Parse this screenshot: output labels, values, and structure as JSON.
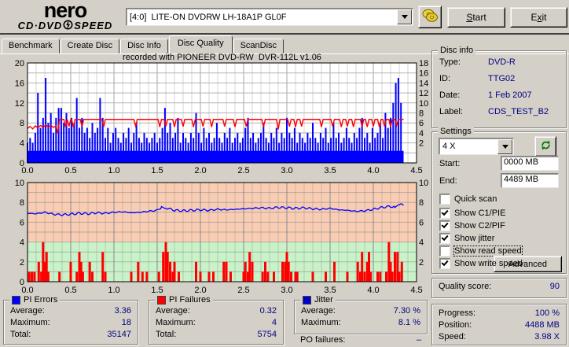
{
  "header": {
    "logo_line1": "nero",
    "logo_line2": "CD·DVD",
    "logo_line3": "SPEED",
    "drive_select": "[4:0]  LITE-ON DVDRW LH-18A1P GL0F",
    "start_button": {
      "text": "Start",
      "u": 0
    },
    "exit_button": {
      "text": "Exit",
      "u": 1
    }
  },
  "tabs": [
    {
      "label": "Benchmark"
    },
    {
      "label": "Create Disc"
    },
    {
      "label": "Disc Info"
    },
    {
      "label": "Disc Quality"
    },
    {
      "label": "ScanDisc"
    }
  ],
  "chart_data": [
    {
      "type": "area",
      "title": "recorded with PIONEER DVD-RW  DVR-112L v1.06",
      "xlim": [
        0,
        4.5
      ],
      "x_ticks": [
        "0.0",
        "0.5",
        "1.0",
        "1.5",
        "2.0",
        "2.5",
        "3.0",
        "3.5",
        "4.0",
        "4.5"
      ],
      "left_ticks": [
        0,
        4,
        8,
        12,
        16,
        20
      ],
      "left_lim": [
        0,
        20
      ],
      "right_ticks": [
        2,
        4,
        6,
        8,
        10,
        12,
        14,
        16,
        18
      ],
      "grid": true,
      "pi_errors": {
        "name": "PI Errors",
        "color": "#0000ff",
        "step": 0.03,
        "values": [
          4,
          5,
          4,
          6,
          14,
          7,
          9,
          17,
          8,
          10,
          6,
          9,
          11,
          11,
          8,
          10,
          7,
          9,
          8,
          13,
          7,
          9,
          6,
          7,
          5,
          8,
          6,
          7,
          13,
          9,
          5,
          7,
          4,
          6,
          7,
          5,
          4,
          6,
          5,
          7,
          4,
          6,
          8,
          5,
          4,
          6,
          5,
          4,
          5,
          6,
          4,
          5,
          7,
          11,
          6,
          8,
          5,
          6,
          9,
          4,
          6,
          5,
          4,
          6,
          5,
          10,
          6,
          4,
          7,
          5,
          6,
          4,
          5,
          8,
          5,
          4,
          6,
          5,
          7,
          4,
          5,
          6,
          4,
          5,
          7,
          9,
          5,
          6,
          4,
          5,
          6,
          8,
          5,
          4,
          6,
          5,
          7,
          4,
          6,
          5,
          9,
          6,
          5,
          7,
          4,
          6,
          5,
          4,
          6,
          5,
          8,
          5,
          4,
          6,
          5,
          7,
          4,
          5,
          8,
          5,
          6,
          4,
          5,
          7,
          5,
          4,
          6,
          5,
          7,
          9,
          5,
          6,
          4,
          7,
          5,
          6,
          8,
          5,
          10,
          7,
          9,
          12,
          16,
          17,
          12
        ]
      },
      "write_speed": {
        "name": "Write speed",
        "color": "#ff0000",
        "level": 6.7,
        "intro": [
          [
            0,
            4.9
          ],
          [
            0.03,
            5.3
          ],
          [
            0.06,
            4.8
          ],
          [
            0.09,
            5.4
          ],
          [
            0.12,
            5.0
          ],
          [
            0.15,
            5.5
          ],
          [
            0.18,
            5.1
          ],
          [
            0.21,
            5.6
          ],
          [
            0.24,
            5.2
          ],
          [
            0.27,
            5.5
          ],
          [
            0.3,
            5.1
          ],
          [
            0.33,
            5.4
          ],
          [
            0.35,
            3.9
          ]
        ],
        "flat_from": 0.37,
        "flat_to": 4.35,
        "dips": [
          [
            0.44,
            5.2
          ],
          [
            0.48,
            5.3
          ],
          [
            0.53,
            5.2
          ],
          [
            0.63,
            5.3
          ],
          [
            0.88,
            5.2
          ],
          [
            1.25,
            5.4
          ],
          [
            1.53,
            5.2
          ],
          [
            1.6,
            5.3
          ],
          [
            1.7,
            5.2
          ],
          [
            1.8,
            5.3
          ],
          [
            1.92,
            5.2
          ],
          [
            2.03,
            5.3
          ],
          [
            2.13,
            5.2
          ],
          [
            2.28,
            5.3
          ],
          [
            2.4,
            5.2
          ],
          [
            2.53,
            5.3
          ],
          [
            2.73,
            5.2
          ],
          [
            2.9,
            4.7
          ],
          [
            3.03,
            5.3
          ],
          [
            3.1,
            5.2
          ],
          [
            3.17,
            5.3
          ],
          [
            3.4,
            5.2
          ],
          [
            3.53,
            5.3
          ],
          [
            3.63,
            5.2
          ],
          [
            3.7,
            5.3
          ],
          [
            3.77,
            5.2
          ],
          [
            3.87,
            5.3
          ],
          [
            3.93,
            5.2
          ],
          [
            4.0,
            5.3
          ],
          [
            4.07,
            5.2
          ],
          [
            4.13,
            5.3
          ],
          [
            4.2,
            5.2
          ],
          [
            4.27,
            5.5
          ]
        ]
      }
    },
    {
      "type": "bar+line",
      "xlim": [
        0,
        4.5
      ],
      "x_ticks": [
        "0.0",
        "0.5",
        "1.0",
        "1.5",
        "2.0",
        "2.5",
        "3.0",
        "3.5",
        "4.0",
        "4.5"
      ],
      "left_ticks": [
        0,
        2,
        4,
        6,
        8,
        10
      ],
      "left_lim": [
        0,
        10
      ],
      "right_ticks": [
        2,
        4,
        6,
        8,
        10
      ],
      "zones": {
        "low": {
          "from": 0,
          "to": 4,
          "color": "#c9f2c9"
        },
        "high": {
          "from": 4,
          "to": 10,
          "color": "#f8cdb4"
        }
      },
      "jitter": {
        "name": "Jitter",
        "color": "#0000ff",
        "points": [
          [
            0,
            6.9
          ],
          [
            0.1,
            6.85
          ],
          [
            0.2,
            7.0
          ],
          [
            0.3,
            6.8
          ],
          [
            0.4,
            6.75
          ],
          [
            0.5,
            6.8
          ],
          [
            0.6,
            6.9
          ],
          [
            0.7,
            6.85
          ],
          [
            0.8,
            6.95
          ],
          [
            0.9,
            6.9
          ],
          [
            1.0,
            7.0
          ],
          [
            1.1,
            7.05
          ],
          [
            1.2,
            6.95
          ],
          [
            1.3,
            7.0
          ],
          [
            1.4,
            7.1
          ],
          [
            1.5,
            7.2
          ],
          [
            1.55,
            7.5
          ],
          [
            1.6,
            7.45
          ],
          [
            1.7,
            7.2
          ],
          [
            1.8,
            7.15
          ],
          [
            1.9,
            7.2
          ],
          [
            2.0,
            7.25
          ],
          [
            2.1,
            7.2
          ],
          [
            2.2,
            7.3
          ],
          [
            2.3,
            7.25
          ],
          [
            2.4,
            7.3
          ],
          [
            2.5,
            7.35
          ],
          [
            2.6,
            7.4
          ],
          [
            2.7,
            7.45
          ],
          [
            2.8,
            7.4
          ],
          [
            2.9,
            7.5
          ],
          [
            3.0,
            7.45
          ],
          [
            3.1,
            7.4
          ],
          [
            3.2,
            7.45
          ],
          [
            3.3,
            7.35
          ],
          [
            3.4,
            7.3
          ],
          [
            3.5,
            7.4
          ],
          [
            3.6,
            7.25
          ],
          [
            3.7,
            7.2
          ],
          [
            3.8,
            7.1
          ],
          [
            3.9,
            7.15
          ],
          [
            4.0,
            7.3
          ],
          [
            4.1,
            7.5
          ],
          [
            4.2,
            7.6
          ],
          [
            4.25,
            7.5
          ],
          [
            4.3,
            7.8
          ],
          [
            4.35,
            7.7
          ]
        ]
      },
      "pi_failures": {
        "name": "PI Failures",
        "color": "#ff0000",
        "bars": [
          [
            0.02,
            1
          ],
          [
            0.05,
            1
          ],
          [
            0.08,
            1
          ],
          [
            0.13,
            2
          ],
          [
            0.16,
            1
          ],
          [
            0.18,
            4
          ],
          [
            0.2,
            2
          ],
          [
            0.22,
            3
          ],
          [
            0.24,
            1
          ],
          [
            0.37,
            1
          ],
          [
            0.5,
            2
          ],
          [
            0.57,
            1
          ],
          [
            0.6,
            3
          ],
          [
            0.62,
            2
          ],
          [
            0.64,
            1
          ],
          [
            0.72,
            2
          ],
          [
            0.75,
            1
          ],
          [
            0.87,
            3
          ],
          [
            0.9,
            1
          ],
          [
            1.2,
            1
          ],
          [
            1.28,
            2
          ],
          [
            1.33,
            1
          ],
          [
            1.38,
            1
          ],
          [
            1.52,
            1
          ],
          [
            1.57,
            3
          ],
          [
            1.6,
            4
          ],
          [
            1.62,
            3
          ],
          [
            1.65,
            2
          ],
          [
            1.68,
            1
          ],
          [
            1.7,
            2
          ],
          [
            1.75,
            1
          ],
          [
            1.95,
            2
          ],
          [
            2.0,
            1
          ],
          [
            2.1,
            1
          ],
          [
            2.15,
            1
          ],
          [
            2.27,
            2
          ],
          [
            2.3,
            2
          ],
          [
            2.35,
            1
          ],
          [
            2.5,
            1
          ],
          [
            2.52,
            2
          ],
          [
            2.55,
            1
          ],
          [
            2.57,
            3
          ],
          [
            2.6,
            2
          ],
          [
            2.72,
            1
          ],
          [
            2.75,
            2
          ],
          [
            2.78,
            1
          ],
          [
            2.85,
            1
          ],
          [
            2.95,
            2
          ],
          [
            2.98,
            2
          ],
          [
            3.0,
            3
          ],
          [
            3.02,
            2
          ],
          [
            3.05,
            1
          ],
          [
            3.1,
            1
          ],
          [
            3.12,
            1
          ],
          [
            3.3,
            1
          ],
          [
            3.45,
            1
          ],
          [
            3.55,
            2
          ],
          [
            3.7,
            1
          ],
          [
            3.82,
            2
          ],
          [
            3.85,
            1
          ],
          [
            3.87,
            3
          ],
          [
            3.9,
            1
          ],
          [
            3.93,
            2
          ],
          [
            3.95,
            3
          ],
          [
            3.97,
            1
          ],
          [
            4.05,
            1
          ],
          [
            4.08,
            1
          ],
          [
            4.15,
            1
          ],
          [
            4.18,
            4
          ],
          [
            4.2,
            2
          ],
          [
            4.22,
            1
          ],
          [
            4.25,
            3
          ],
          [
            4.28,
            3
          ],
          [
            4.3,
            1
          ],
          [
            4.33,
            2
          ]
        ]
      }
    }
  ],
  "disc_info": {
    "legend": "Disc info",
    "rows": [
      {
        "label": "Type:",
        "value": "DVD-R"
      },
      {
        "label": "ID:",
        "value": "TTG02"
      },
      {
        "label": "Date:",
        "value": "1 Feb 2007"
      },
      {
        "label": "Label:",
        "value": "CDS_TEST_B2"
      }
    ]
  },
  "settings": {
    "legend": "Settings",
    "speed_select": "4 X",
    "start_label": "Start:",
    "start_value": "0000 MB",
    "end_label": "End:",
    "end_value": "4489 MB",
    "checkboxes": [
      {
        "label": "Quick scan",
        "checked": false
      },
      {
        "label": "Show C1/PIE",
        "checked": true
      },
      {
        "label": "Show C2/PIF",
        "checked": true
      },
      {
        "label": "Show jitter",
        "checked": true
      },
      {
        "label": "Show read speed",
        "checked": false,
        "focused": true
      },
      {
        "label": "Show write speed",
        "checked": true
      }
    ],
    "advanced_button": "Advanced"
  },
  "quality": {
    "label": "Quality score:",
    "value": "90"
  },
  "progress": {
    "rows": [
      {
        "label": "Progress:",
        "value": "100 %"
      },
      {
        "label": "Position:",
        "value": "4488 MB"
      },
      {
        "label": "Speed:",
        "value": "3.98 X"
      }
    ]
  },
  "stats": {
    "pi_errors": {
      "legend": "PI Errors",
      "color": "#0000ff",
      "rows": [
        {
          "label": "Average:",
          "value": "3.36"
        },
        {
          "label": "Maximum:",
          "value": "18"
        },
        {
          "label": "Total:",
          "value": "35147"
        }
      ]
    },
    "pi_failures": {
      "legend": "PI Failures",
      "color": "#ff0000",
      "rows": [
        {
          "label": "Average:",
          "value": "0.32"
        },
        {
          "label": "Maximum:",
          "value": "4"
        },
        {
          "label": "Total:",
          "value": "5754"
        }
      ]
    },
    "jitter": {
      "legend": "Jitter",
      "color": "#0000cc",
      "rows": [
        {
          "label": "Average:",
          "value": "7.30 %"
        },
        {
          "label": "Maximum:",
          "value": "8.1 %"
        }
      ]
    },
    "po_failures": {
      "label": "PO failures:",
      "value": "–"
    }
  }
}
